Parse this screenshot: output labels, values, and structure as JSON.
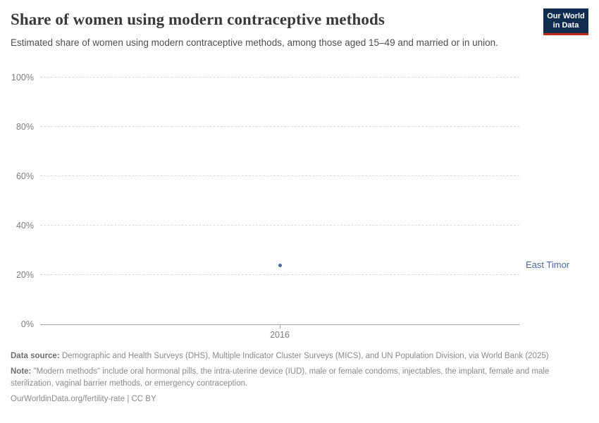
{
  "header": {
    "title": "Share of women using modern contraceptive methods",
    "subtitle": "Estimated share of women using modern contraceptive methods, among those aged 15–49 and married or in union.",
    "logo": {
      "line1": "Our World",
      "line2": "in Data",
      "bg_color": "#102d50",
      "accent_color": "#c5271c"
    }
  },
  "chart_data": {
    "type": "scatter",
    "title": "Share of women using modern contraceptive methods",
    "x": [
      2016
    ],
    "series": [
      {
        "name": "East Timor",
        "values": [
          24
        ],
        "color": "#4c6a9c"
      }
    ],
    "xticks": [
      "2016"
    ],
    "yticks": [
      {
        "value": 0,
        "label": "0%"
      },
      {
        "value": 20,
        "label": "20%"
      },
      {
        "value": 40,
        "label": "40%"
      },
      {
        "value": 60,
        "label": "60%"
      },
      {
        "value": 80,
        "label": "80%"
      },
      {
        "value": 100,
        "label": "100%"
      }
    ],
    "ylim": [
      0,
      100
    ],
    "unit": "%",
    "grid": "horizontal-dashed",
    "legend_position": "entity-label-right-of-plot"
  },
  "footer": {
    "datasource_label": "Data source:",
    "datasource_text": " Demographic and Health Surveys (DHS), Multiple Indicator Cluster Surveys (MICS), and UN Population Division, via World Bank (2025)",
    "note_label": "Note:",
    "note_text": " \"Modern methods\" include oral hormonal pills, the intra-uterine device (IUD), male or female condoms, injectables, the implant, female and male sterilization, vaginal barrier methods, or emergency contraception.",
    "citation": "OurWorldinData.org/fertility-rate | CC BY"
  }
}
